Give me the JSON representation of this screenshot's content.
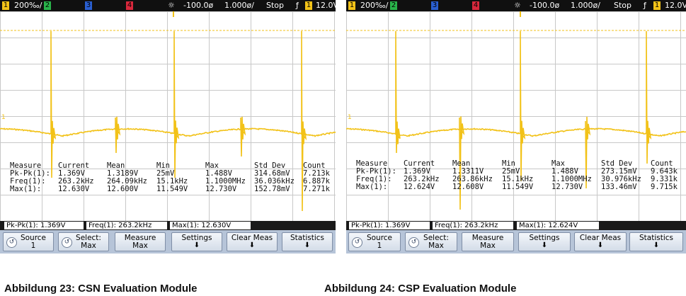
{
  "scopes": [
    {
      "topbar": {
        "ch1_num": "1",
        "ch1_scale": "200‰/",
        "ch2_num": "2",
        "ch3_num": "3",
        "ch4_num": "4",
        "trigger_icon": "trigger-sun-icon",
        "time_offset": "-100.0ø",
        "time_scale": "1.000ø/",
        "run_state": "Stop",
        "edge_symbol": "ƒ",
        "trig_ch": "1",
        "trig_level": "12.0V"
      },
      "measurements": {
        "headers": [
          "Measure",
          "Current",
          "Mean",
          "Min",
          "Max",
          "Std Dev",
          "Count"
        ],
        "rows": [
          [
            "Pk-Pk(1):",
            "1.369V",
            "1.3189V",
            "25mV",
            "1.488V",
            "314.68mV",
            "7.213k"
          ],
          [
            "Freq(1):",
            "263.2kHz",
            "264.09kHz",
            "15.1kHz",
            "1.1000MHz",
            "36.036kHz",
            "6.887k"
          ],
          [
            "Max(1):",
            "12.630V",
            "12.600V",
            "11.549V",
            "12.730V",
            "152.78mV",
            "7.271k"
          ]
        ]
      },
      "readouts": [
        "Pk-Pk(1): 1.369V",
        "Freq(1): 263.2kHz",
        "Max(1): 12.630V"
      ],
      "softkeys": [
        {
          "line1": "Source",
          "line2": "1"
        },
        {
          "line1": "Select:",
          "line2": "Max"
        },
        {
          "line1": "Measure",
          "line2": "Max"
        },
        {
          "line1": "Settings",
          "line2": "⬇"
        },
        {
          "line1": "Clear Meas",
          "line2": "⬇"
        },
        {
          "line1": "Statistics",
          "line2": "⬇"
        }
      ],
      "caption": "Abbildung 23: CSN Evaluation Module"
    },
    {
      "topbar": {
        "ch1_num": "1",
        "ch1_scale": "200‰/",
        "ch2_num": "2",
        "ch3_num": "3",
        "ch4_num": "4",
        "trigger_icon": "trigger-sun-icon",
        "time_offset": "-100.0ø",
        "time_scale": "1.000ø/",
        "run_state": "Stop",
        "edge_symbol": "ƒ",
        "trig_ch": "1",
        "trig_level": "12.0V"
      },
      "measurements": {
        "headers": [
          "Measure",
          "Current",
          "Mean",
          "Min",
          "Max",
          "Std Dev",
          "Count"
        ],
        "rows": [
          [
            "Pk-Pk(1):",
            "1.369V",
            "1.3311V",
            "25mV",
            "1.488V",
            "273.15mV",
            "9.643k"
          ],
          [
            "Freq(1):",
            "263.2kHz",
            "263.86kHz",
            "15.1kHz",
            "1.1000MHz",
            "30.976kHz",
            "9.331k"
          ],
          [
            "Max(1):",
            "12.624V",
            "12.608V",
            "11.549V",
            "12.730V",
            "133.46mV",
            "9.715k"
          ]
        ]
      },
      "readouts": [
        "Pk-Pk(1): 1.369V",
        "Freq(1): 263.2kHz",
        "Max(1): 12.624V"
      ],
      "softkeys": [
        {
          "line1": "Source",
          "line2": "1"
        },
        {
          "line1": "Select:",
          "line2": "Max"
        },
        {
          "line1": "Measure",
          "line2": "Max"
        },
        {
          "line1": "Settings",
          "line2": "⬇"
        },
        {
          "line1": "Clear Meas",
          "line2": "⬇"
        },
        {
          "line1": "Statistics",
          "line2": "⬇"
        }
      ],
      "caption": "Abbildung 24: CSP Evaluation Module"
    }
  ],
  "colors": {
    "trace": "#f2c218",
    "ch1": "#f2c218",
    "ch2": "#29b34a",
    "ch3": "#2a5fd0",
    "ch4": "#d8283c",
    "grid_bg": "#ffffff"
  }
}
